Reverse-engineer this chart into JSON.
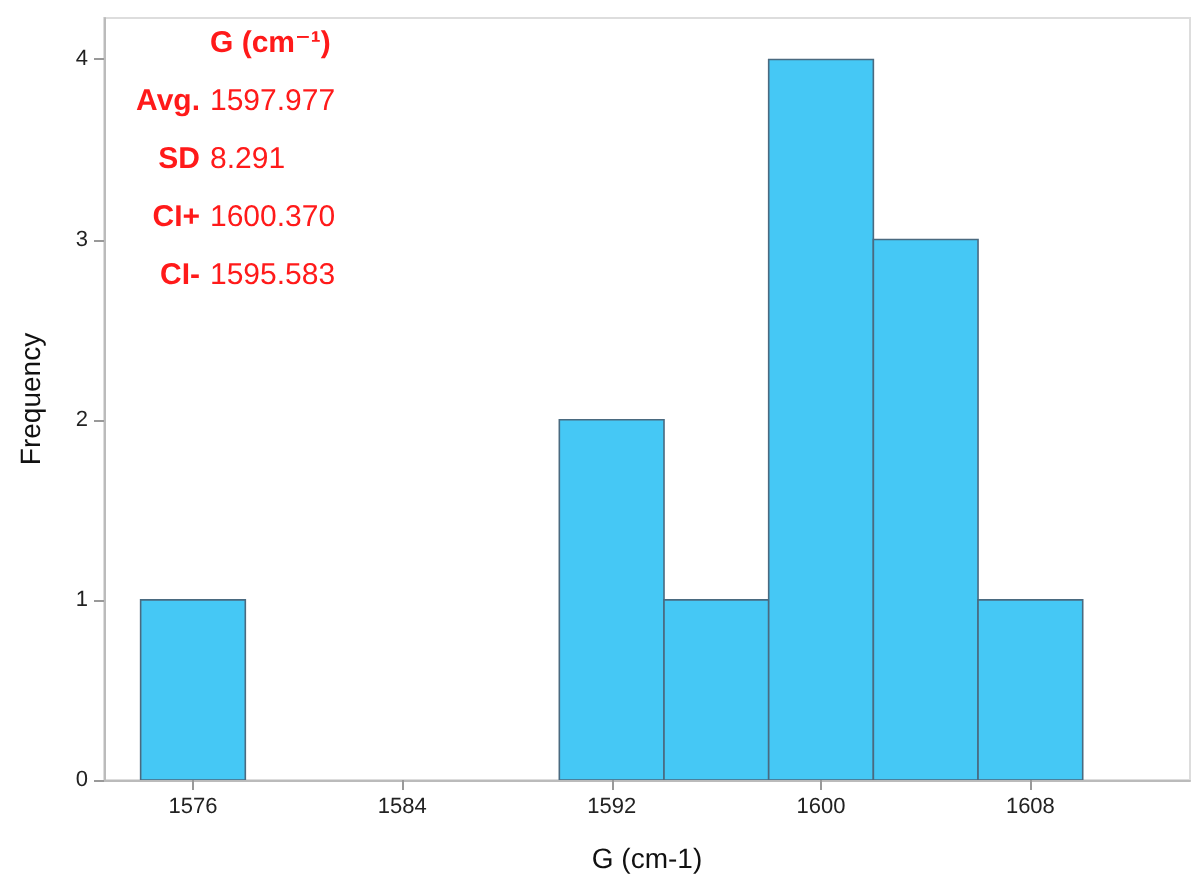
{
  "chart_data": {
    "type": "histogram",
    "title": "G (cm⁻¹)",
    "xlabel": "G (cm-1)",
    "ylabel": "Frequency",
    "bins": [
      1574,
      1578,
      1582,
      1586,
      1590,
      1594,
      1598,
      1602,
      1606,
      1610
    ],
    "values": [
      1,
      0,
      0,
      0,
      2,
      1,
      4,
      3,
      1
    ],
    "color": "#45c8f5",
    "annotations": [
      "Avg. 1597.977",
      "SD 8.291",
      "CI+ 1600.370",
      "CI- 1595.583"
    ],
    "xlim": [
      1572.6,
      1614.1
    ],
    "xticks": [
      1576,
      1584,
      1592,
      1600,
      1608
    ],
    "ylim": [
      0,
      4.23
    ],
    "yticks": [
      0,
      1,
      2,
      3,
      4
    ],
    "grid": false
  }
}
